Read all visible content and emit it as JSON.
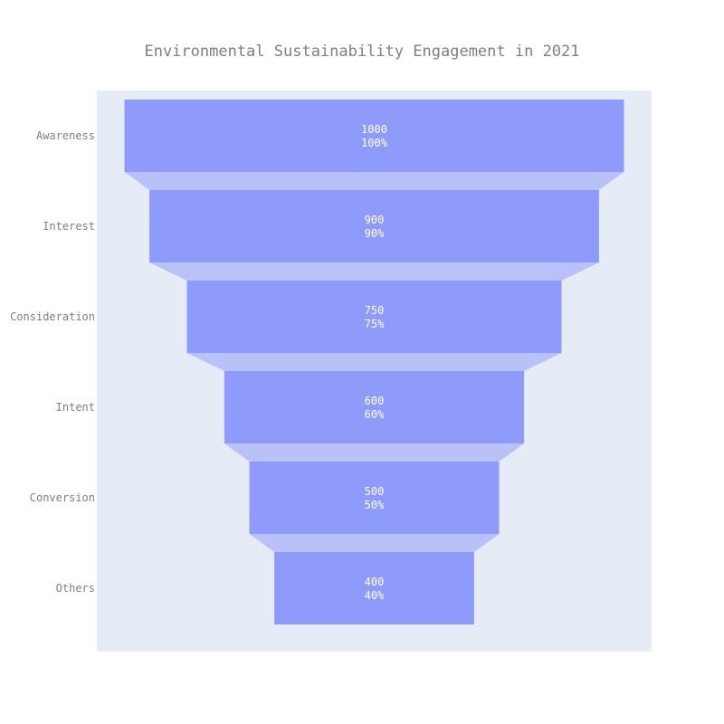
{
  "chart_data": {
    "type": "funnel",
    "title": "Environmental Sustainability Engagement in 2021",
    "categories": [
      "Awareness",
      "Interest",
      "Consideration",
      "Intent",
      "Conversion",
      "Others"
    ],
    "values": [
      1000,
      900,
      750,
      600,
      500,
      400
    ],
    "percent_labels": [
      "100%",
      "90%",
      "75%",
      "60%",
      "50%",
      "40%"
    ],
    "colors": {
      "plot_background": "#e5ecf6",
      "bar": "#8f9bfb",
      "connector": "#b9c2f8",
      "text": "#7f7f7f",
      "bar_text": "#ffffff"
    },
    "grid": false,
    "legend": "none"
  }
}
